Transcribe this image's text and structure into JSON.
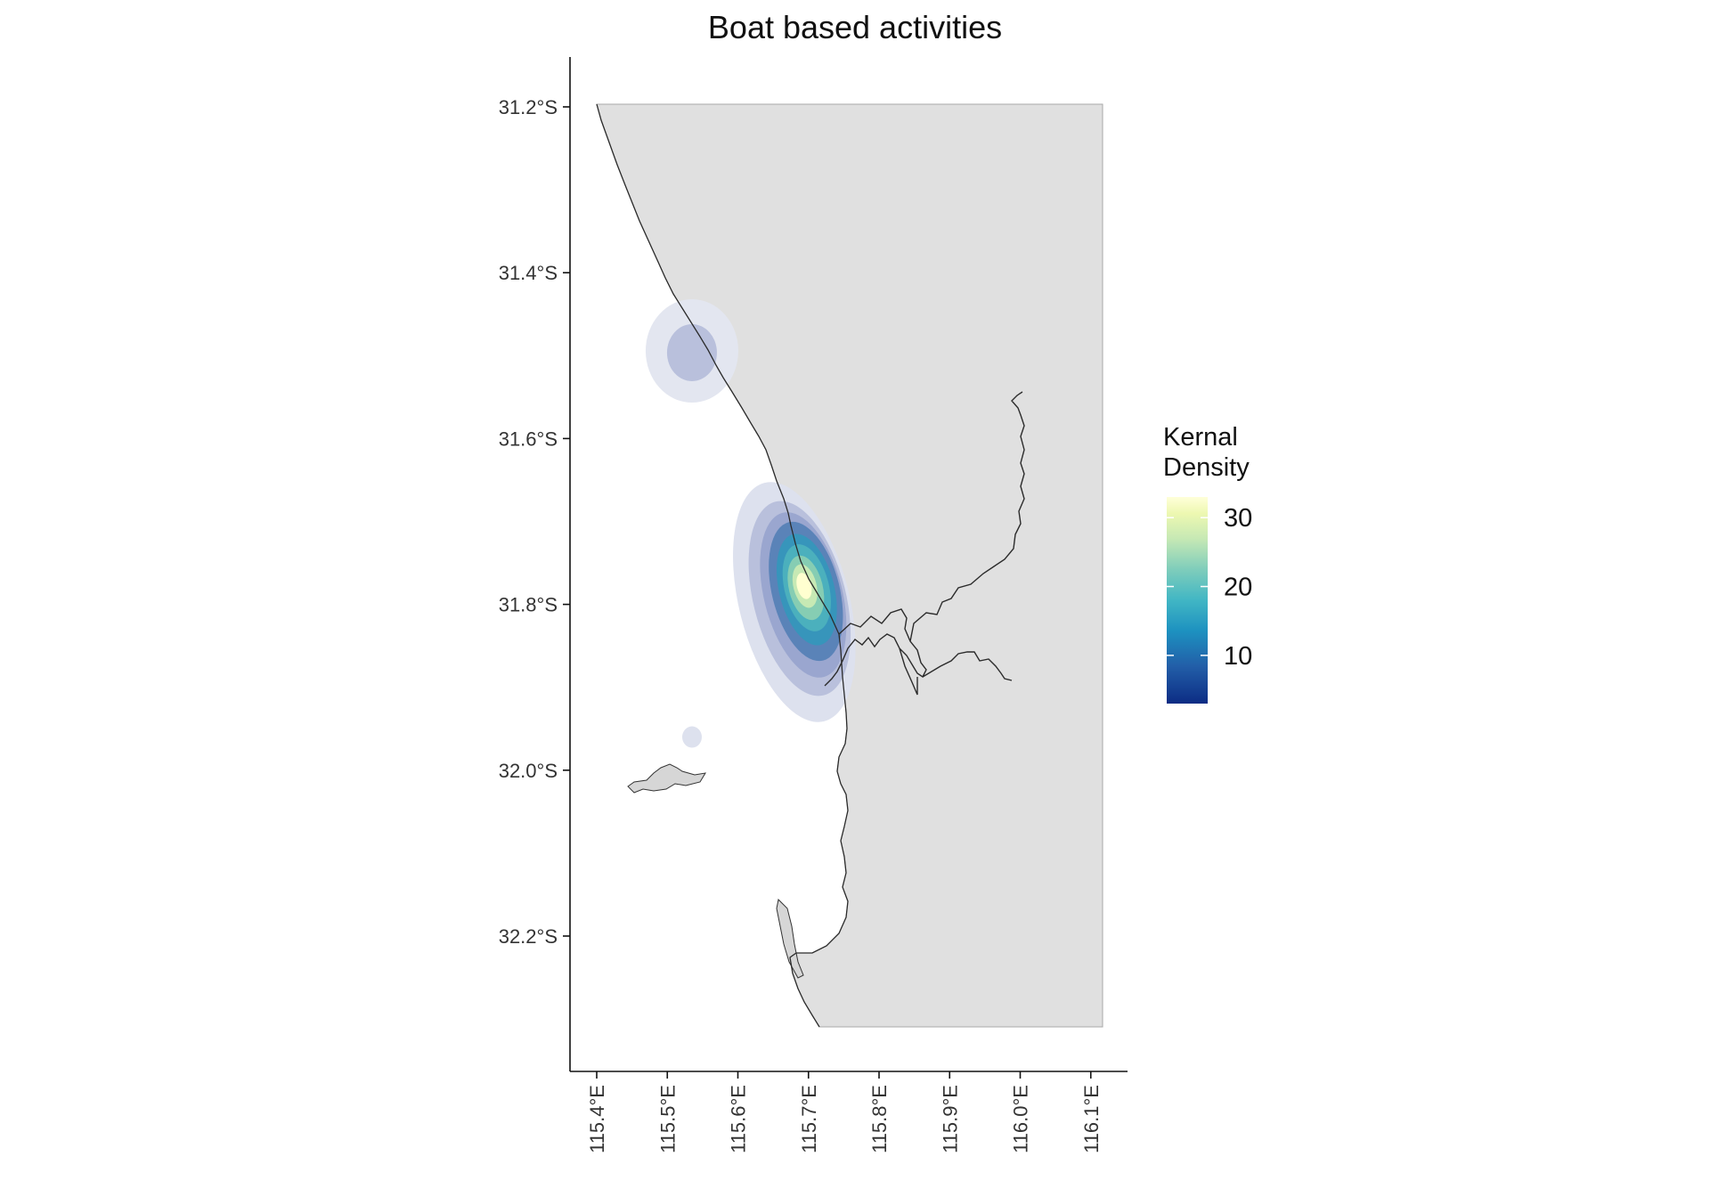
{
  "chart_data": {
    "type": "heatmap",
    "title": "Boat based activities",
    "xlabel": "",
    "ylabel": "",
    "x_ticks": [
      "115.4°E",
      "115.5°E",
      "115.6°E",
      "115.7°E",
      "115.8°E",
      "115.9°E",
      "116.0°E",
      "116.1°E"
    ],
    "x_tick_values": [
      115.4,
      115.5,
      115.6,
      115.7,
      115.8,
      115.9,
      116.0,
      116.1
    ],
    "y_ticks": [
      "31.2°S",
      "31.4°S",
      "31.6°S",
      "31.8°S",
      "32.0°S",
      "32.2°S"
    ],
    "y_tick_values": [
      -31.2,
      -31.4,
      -31.6,
      -31.8,
      -32.0,
      -32.2
    ],
    "xlim": [
      115.37,
      116.16
    ],
    "ylim": [
      -32.37,
      -31.13
    ],
    "legend": {
      "title_line1": "Kernal",
      "title_line2": "Density",
      "ticks": [
        "30",
        "20",
        "10"
      ],
      "tick_values": [
        30,
        20,
        10
      ],
      "range": [
        3,
        33
      ],
      "colors": [
        "#0c2c84",
        "#225ea8",
        "#1d91c0",
        "#41b6c4",
        "#7fcdbb",
        "#c7e9b4",
        "#edf8b1",
        "#ffffd9"
      ],
      "placement": "right"
    },
    "density_hotspots": [
      {
        "lon": 115.69,
        "lat": -31.78,
        "peak": 33
      },
      {
        "lon": 115.54,
        "lat": -31.49,
        "peak": 5
      },
      {
        "lon": 115.535,
        "lat": -31.96,
        "peak": 2
      }
    ],
    "land_color": "#e0e0e0",
    "coastline_color": "#222222",
    "grid": false
  }
}
